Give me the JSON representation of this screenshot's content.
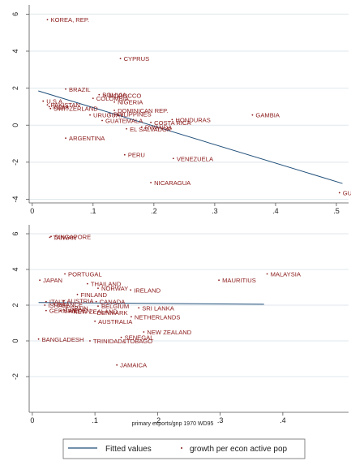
{
  "chart_data": [
    {
      "type": "scatter",
      "xlim": [
        -0.005,
        0.52
      ],
      "ylim": [
        -4.2,
        6.5
      ],
      "xticks": [
        0,
        0.1,
        0.2,
        0.3,
        0.4,
        0.5
      ],
      "xtick_labels": [
        "0",
        ".1",
        ".2",
        ".3",
        ".4",
        ".5"
      ],
      "yticks": [
        -4,
        -2,
        0,
        2,
        4,
        6
      ],
      "ytick_labels": [
        "-4",
        "-2",
        "0",
        "2",
        "4",
        "6"
      ],
      "xlabel": "",
      "ylabel": "",
      "grid": true,
      "fit": {
        "x": [
          0.01,
          0.51
        ],
        "y": [
          1.85,
          -3.15
        ]
      },
      "points": [
        {
          "label": "KOREA, REP.",
          "x": 0.025,
          "y": 5.7
        },
        {
          "label": "CYPRUS",
          "x": 0.145,
          "y": 3.6
        },
        {
          "label": "BRAZIL",
          "x": 0.055,
          "y": 1.95
        },
        {
          "label": "BOLIVIA",
          "x": 0.11,
          "y": 1.65
        },
        {
          "label": "MOROCCO",
          "x": 0.12,
          "y": 1.6
        },
        {
          "label": "COLOMBIA",
          "x": 0.1,
          "y": 1.45
        },
        {
          "label": "NIGERIA",
          "x": 0.135,
          "y": 1.25
        },
        {
          "label": "U.S.A.",
          "x": 0.018,
          "y": 1.3
        },
        {
          "label": "PAKISTAN",
          "x": 0.025,
          "y": 1.1
        },
        {
          "label": "INDIA",
          "x": 0.028,
          "y": 1.0
        },
        {
          "label": "SWITZERLAND",
          "x": 0.03,
          "y": 0.9
        },
        {
          "label": "DOMINICAN REP.",
          "x": 0.135,
          "y": 0.8
        },
        {
          "label": "PHILIPPINES",
          "x": 0.128,
          "y": 0.6
        },
        {
          "label": "URUGUAY",
          "x": 0.095,
          "y": 0.55
        },
        {
          "label": "HONDURAS",
          "x": 0.23,
          "y": 0.3
        },
        {
          "label": "GAMBIA",
          "x": 0.362,
          "y": 0.55
        },
        {
          "label": "GUATEMALA",
          "x": 0.115,
          "y": 0.25
        },
        {
          "label": "COSTA RICA",
          "x": 0.195,
          "y": 0.15
        },
        {
          "label": "RWANDA",
          "x": 0.18,
          "y": -0.1
        },
        {
          "label": "EL SALVADOR",
          "x": 0.155,
          "y": -0.2
        },
        {
          "label": "ARGENTINA",
          "x": 0.055,
          "y": -0.7
        },
        {
          "label": "PERU",
          "x": 0.152,
          "y": -1.6
        },
        {
          "label": "VENEZUELA",
          "x": 0.232,
          "y": -1.8
        },
        {
          "label": "NICARAGUA",
          "x": 0.195,
          "y": -3.1
        },
        {
          "label": "GU",
          "x": 0.505,
          "y": -3.65
        }
      ]
    },
    {
      "type": "scatter",
      "xlim": [
        -0.005,
        0.505
      ],
      "ylim": [
        -4.0,
        6.5
      ],
      "xticks": [
        0,
        0.1,
        0.2,
        0.3,
        0.4
      ],
      "xtick_labels": [
        "0",
        ".1",
        ".2",
        ".3",
        ".4"
      ],
      "yticks": [
        -2,
        0,
        2,
        4,
        6
      ],
      "ytick_labels": [
        "-2",
        "0",
        "2",
        "4",
        "6"
      ],
      "xlabel": "primary exports/gnp 1970 WD95",
      "ylabel": "",
      "grid": true,
      "fit": {
        "x": [
          0.01,
          0.37
        ],
        "y": [
          2.15,
          2.05
        ]
      },
      "points": [
        {
          "label": "TAIWAN",
          "x": 0.028,
          "y": 5.8
        },
        {
          "label": "SINGAPORE",
          "x": 0.03,
          "y": 5.85
        },
        {
          "label": "PORTUGAL",
          "x": 0.052,
          "y": 3.75
        },
        {
          "label": "JAPAN",
          "x": 0.012,
          "y": 3.4
        },
        {
          "label": "MALAYSIA",
          "x": 0.375,
          "y": 3.75
        },
        {
          "label": "MAURITIUS",
          "x": 0.298,
          "y": 3.4
        },
        {
          "label": "THAILAND",
          "x": 0.088,
          "y": 3.2
        },
        {
          "label": "NORWAY",
          "x": 0.105,
          "y": 2.95
        },
        {
          "label": "IRELAND",
          "x": 0.157,
          "y": 2.85
        },
        {
          "label": "FINLAND",
          "x": 0.072,
          "y": 2.6
        },
        {
          "label": "ITALY",
          "x": 0.022,
          "y": 2.2
        },
        {
          "label": "AUSTRIA",
          "x": 0.05,
          "y": 2.25
        },
        {
          "label": "CANADA",
          "x": 0.102,
          "y": 2.2
        },
        {
          "label": "ISRAEL",
          "x": 0.02,
          "y": 2.0
        },
        {
          "label": "FRANCE",
          "x": 0.035,
          "y": 2.05
        },
        {
          "label": "BELGIUM",
          "x": 0.105,
          "y": 1.95
        },
        {
          "label": "SPAIN",
          "x": 0.055,
          "y": 1.85
        },
        {
          "label": "SRI LANKA",
          "x": 0.17,
          "y": 1.85
        },
        {
          "label": "GERMANY",
          "x": 0.022,
          "y": 1.7
        },
        {
          "label": "SWEDEN",
          "x": 0.045,
          "y": 1.7
        },
        {
          "label": "NEW ZEALAND",
          "x": 0.06,
          "y": 1.65
        },
        {
          "label": "DENMARK",
          "x": 0.098,
          "y": 1.6
        },
        {
          "label": "NETHERLANDS",
          "x": 0.158,
          "y": 1.35
        },
        {
          "label": "AUSTRALIA",
          "x": 0.1,
          "y": 1.1
        },
        {
          "label": "NEW ZEALAND",
          "x": 0.178,
          "y": 0.5
        },
        {
          "label": "SENEGAL",
          "x": 0.142,
          "y": 0.2
        },
        {
          "label": "BANGLADESH",
          "x": 0.01,
          "y": 0.1
        },
        {
          "label": "TRINIDAD&TOBAGO",
          "x": 0.092,
          "y": 0.0
        },
        {
          "label": "JAMAICA",
          "x": 0.135,
          "y": -1.35
        }
      ]
    }
  ],
  "legend": {
    "fitted_label": "Fitted values",
    "points_label": "growth per econ active pop"
  },
  "colors": {
    "marker": "#8b1a1a",
    "fit_line": "#1f4e79",
    "grid": "#dfe7ec",
    "background": "#ffffff"
  }
}
